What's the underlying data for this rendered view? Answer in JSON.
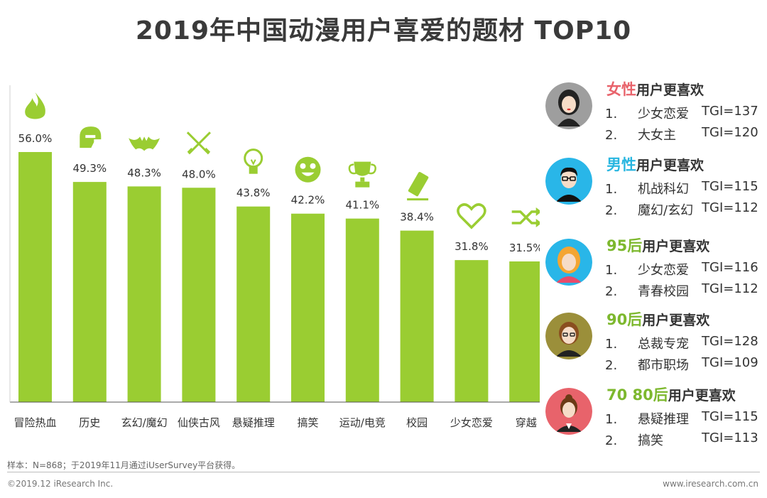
{
  "title": "2019年中国动漫用户喜爱的题材 TOP10",
  "colors": {
    "bar": "#9ACD32",
    "icon": "#9ACD32",
    "female": "#E8636B",
    "male": "#28B6E0",
    "green": "#7DB82E"
  },
  "chart_data": {
    "type": "bar",
    "title": "2019年中国动漫用户喜爱的题材 TOP10",
    "categories": [
      "冒险热血",
      "历史",
      "玄幻/魔幻",
      "仙侠古风",
      "悬疑推理",
      "搞笑",
      "运动/电竞",
      "校园",
      "少女恋爱",
      "穿越"
    ],
    "values": [
      56.0,
      49.3,
      48.3,
      48.0,
      43.8,
      42.2,
      41.1,
      38.4,
      31.8,
      31.5
    ],
    "labels": [
      "56.0%",
      "49.3%",
      "48.3%",
      "48.0%",
      "43.8%",
      "42.2%",
      "41.1%",
      "38.4%",
      "31.8%",
      "31.5%"
    ],
    "icons": [
      "flame-icon",
      "helmet-icon",
      "bat-icon",
      "crossed-swords-icon",
      "lightbulb-icon",
      "smiley-icon",
      "trophy-icon",
      "eraser-icon",
      "heart-icon",
      "shuffle-icon"
    ],
    "xlabel": "",
    "ylabel": "",
    "ylim": [
      0,
      60
    ]
  },
  "panels": [
    {
      "prefix": "女性",
      "suffix": "用户更喜欢",
      "color_key": "female",
      "avatar": "female-avatar-icon",
      "rows": [
        {
          "num": "1.",
          "name": "少女恋爱",
          "tgi": "TGI=137"
        },
        {
          "num": "2.",
          "name": "大女主",
          "tgi": "TGI=120"
        }
      ]
    },
    {
      "prefix": "男性",
      "suffix": "用户更喜欢",
      "color_key": "male",
      "avatar": "male-avatar-icon",
      "rows": [
        {
          "num": "1.",
          "name": "机战科幻",
          "tgi": "TGI=115"
        },
        {
          "num": "2.",
          "name": "魔幻/玄幻",
          "tgi": "TGI=112"
        }
      ]
    },
    {
      "prefix": "95后",
      "suffix": "用户更喜欢",
      "color_key": "green",
      "avatar": "girl-avatar-icon",
      "rows": [
        {
          "num": "1.",
          "name": "少女恋爱",
          "tgi": "TGI=116"
        },
        {
          "num": "2.",
          "name": "青春校园",
          "tgi": "TGI=112"
        }
      ]
    },
    {
      "prefix": "90后",
      "suffix": "用户更喜欢",
      "color_key": "green",
      "avatar": "woman-glasses-avatar-icon",
      "rows": [
        {
          "num": "1.",
          "name": "总裁专宠",
          "tgi": "TGI=128"
        },
        {
          "num": "2.",
          "name": "都市职场",
          "tgi": "TGI=109"
        }
      ]
    },
    {
      "prefix": "70 80后",
      "suffix": "用户更喜欢",
      "color_key": "green",
      "avatar": "businesswoman-avatar-icon",
      "rows": [
        {
          "num": "1.",
          "name": "悬疑推理",
          "tgi": "TGI=115"
        },
        {
          "num": "2.",
          "name": "搞笑",
          "tgi": "TGI=113"
        }
      ]
    }
  ],
  "footer": {
    "note": "样本：N=868；于2019年11月通过iUserSurvey平台获得。",
    "copyright": "©2019.12 iResearch Inc.",
    "url": "www.iresearch.com.cn"
  }
}
